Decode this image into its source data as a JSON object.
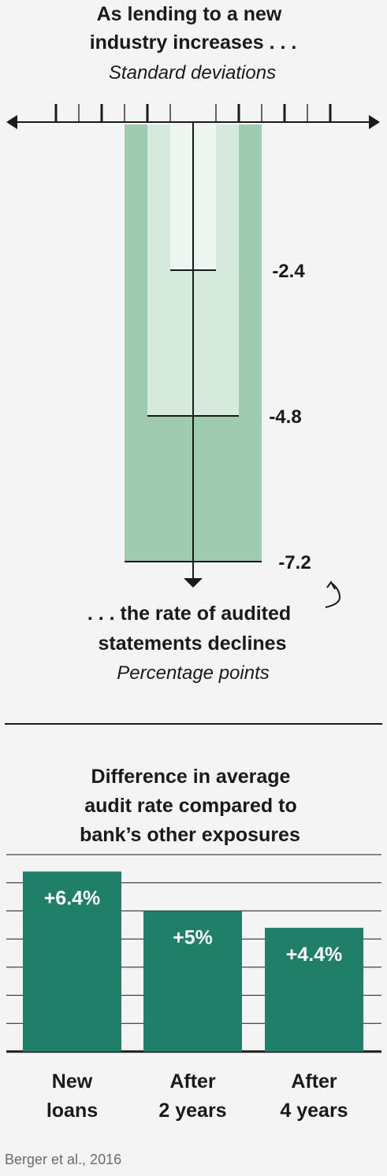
{
  "colors": {
    "background": "#f4f4f4",
    "ink": "#1a1a1a",
    "green_dark": "#207f68",
    "green_1": "#9fcbb0",
    "green_2": "#d5e9dc",
    "green_3": "#eef6f1",
    "source": "#6b6b6b"
  },
  "top": {
    "title": [
      "As lending to a new",
      "industry increases . . ."
    ],
    "subtitle": "Standard deviations",
    "caption": [
      ". . . the rate of audited",
      "statements declines"
    ],
    "caption_sub": "Percentage points",
    "curl_icon": "curved-arrow-icon"
  },
  "bottom": {
    "title": [
      "Difference in average",
      "audit rate compared to",
      "bank’s other exposures"
    ],
    "source": "Berger et al., 2016"
  },
  "chart_data": [
    {
      "type": "bar",
      "title": "As lending to a new industry increases . . .",
      "subtitle": "Standard deviations",
      "ylabel": ". . . the rate of audited statements declines",
      "yunit": "Percentage points",
      "series": [
        {
          "std_dev": 1,
          "value": -2.4,
          "label": "-2.4"
        },
        {
          "std_dev": 2,
          "value": -4.8,
          "label": "-4.8"
        },
        {
          "std_dev": 3,
          "value": -7.2,
          "label": "-7.2"
        }
      ],
      "ylim": [
        -7.2,
        0
      ]
    },
    {
      "type": "bar",
      "title": "Difference in average audit rate compared to bank’s other exposures",
      "categories": [
        [
          "New",
          "loans"
        ],
        [
          "After",
          "2 years"
        ],
        [
          "After",
          "4 years"
        ]
      ],
      "values": [
        6.4,
        5.0,
        4.4
      ],
      "labels": [
        "+6.4%",
        "+5%",
        "+4.4%"
      ],
      "ylim": [
        0,
        7
      ],
      "grid": true
    }
  ]
}
